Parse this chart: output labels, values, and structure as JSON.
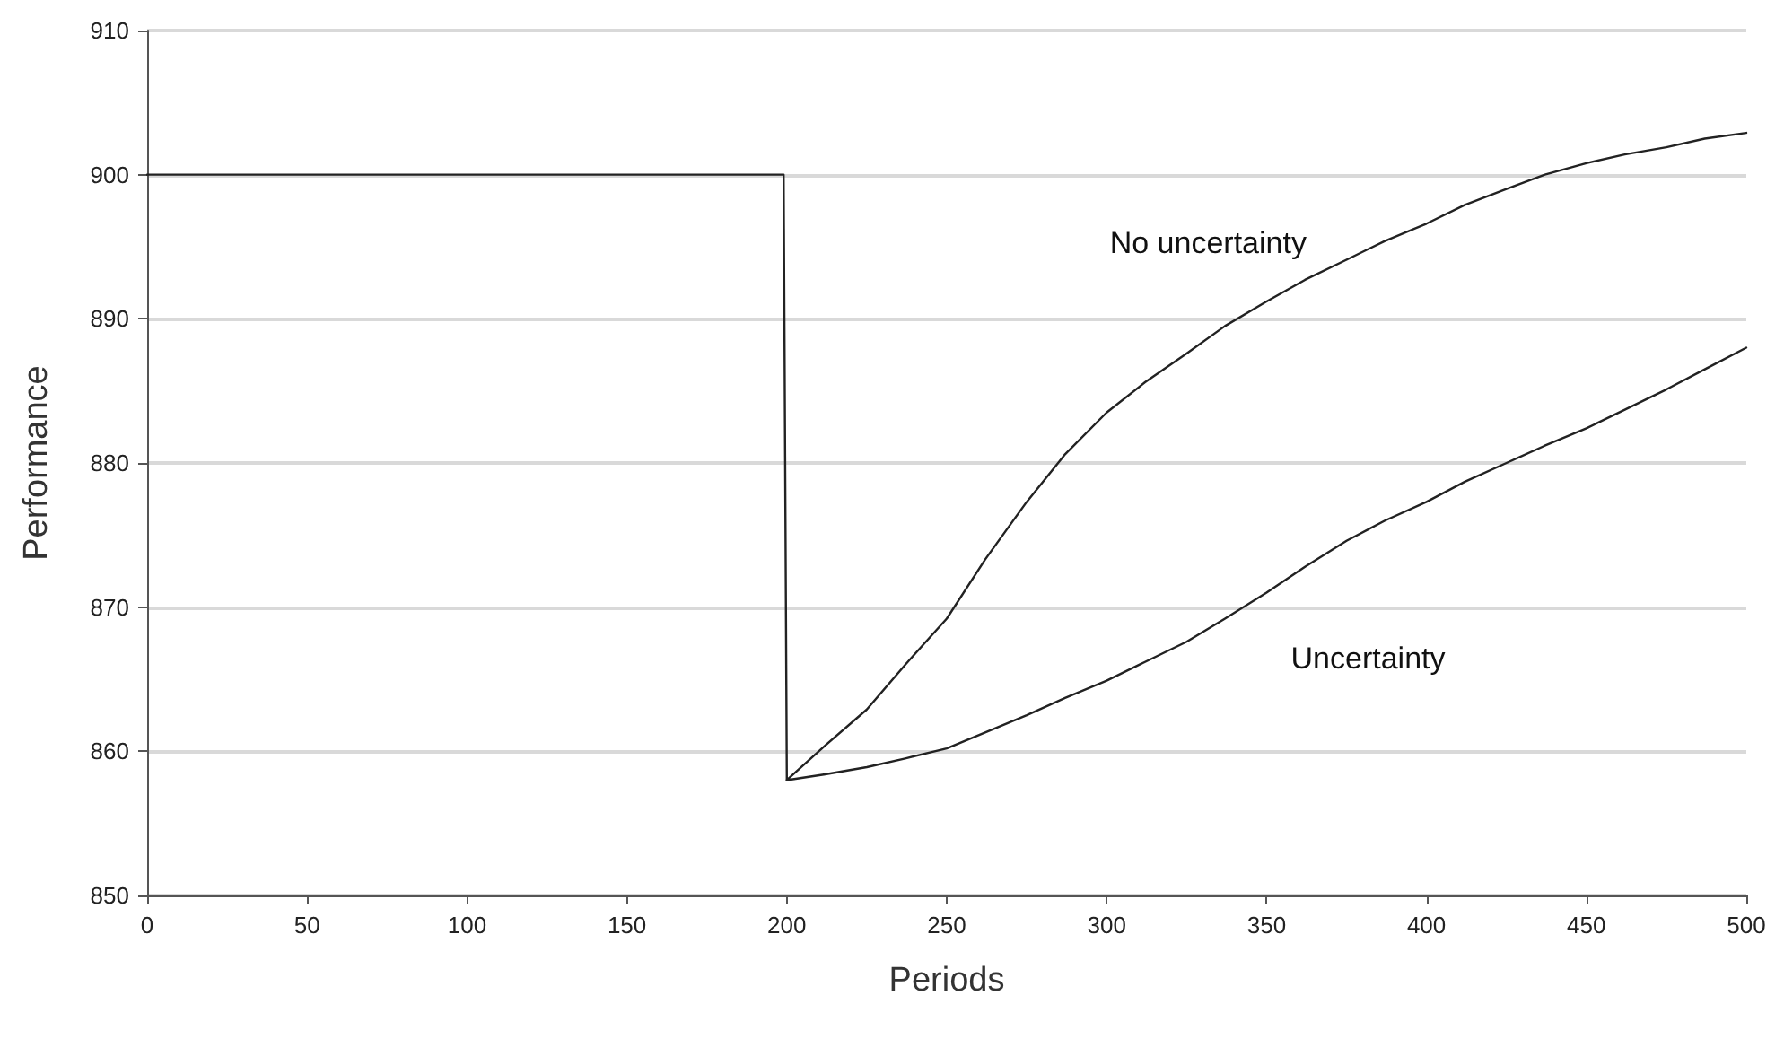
{
  "chart_data": {
    "type": "line",
    "xlabel": "Periods",
    "ylabel": "Performance",
    "xlim": [
      0,
      500
    ],
    "xticks": [
      0,
      50,
      100,
      150,
      200,
      250,
      300,
      350,
      400,
      450,
      500
    ],
    "ylim": [
      850,
      910
    ],
    "yticks": [
      850,
      860,
      870,
      880,
      890,
      900,
      910
    ],
    "grid": "y",
    "legend": false,
    "marker": "none",
    "line_style": "solid",
    "series": [
      {
        "name": "No uncertainty",
        "color": "#222222",
        "x": [
          0,
          199,
          200,
          212,
          225,
          237,
          250,
          262,
          275,
          287,
          300,
          312,
          325,
          337,
          350,
          362,
          375,
          387,
          400,
          412,
          425,
          437,
          450,
          462,
          475,
          487,
          500
        ],
        "values": [
          900,
          900,
          858,
          860.4,
          862.9,
          866,
          869.2,
          873.3,
          877.3,
          880.6,
          883.5,
          885.6,
          887.6,
          889.5,
          891.2,
          892.7,
          894.1,
          895.4,
          896.6,
          897.9,
          899,
          900,
          900.8,
          901.4,
          901.9,
          902.5,
          902.9
        ]
      },
      {
        "name": "Uncertainty",
        "color": "#222222",
        "x": [
          200,
          212,
          225,
          237,
          250,
          262,
          275,
          287,
          300,
          312,
          325,
          337,
          350,
          362,
          375,
          387,
          400,
          412,
          425,
          437,
          450,
          462,
          475,
          487,
          500
        ],
        "values": [
          858,
          858.4,
          858.9,
          859.5,
          860.2,
          861.3,
          862.5,
          863.7,
          864.9,
          866.2,
          867.6,
          869.2,
          871,
          872.8,
          874.6,
          876,
          877.3,
          878.7,
          880,
          881.2,
          882.4,
          883.7,
          885.1,
          886.5,
          888
        ]
      }
    ]
  }
}
